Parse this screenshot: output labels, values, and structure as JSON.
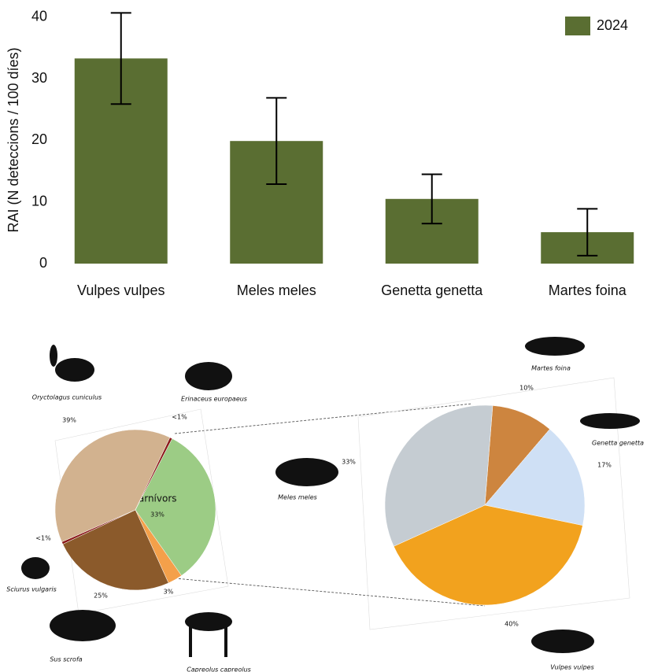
{
  "chart_data": [
    {
      "type": "bar",
      "y_label": "RAI (N deteccions / 100 díes)",
      "categories": [
        "Vulpes vulpes",
        "Meles meles",
        "Genetta genetta",
        "Martes foina"
      ],
      "series": [
        {
          "name": "2024",
          "color": "#5a6e32",
          "values": [
            33.3,
            19.9,
            10.5,
            5.1
          ],
          "errors": [
            7.4,
            7.0,
            4.0,
            3.8
          ]
        }
      ],
      "ylim": [
        0,
        41
      ],
      "yticks": [
        0,
        10,
        20,
        30,
        40
      ],
      "legend": "upper right"
    },
    {
      "type": "pie",
      "center_label": "Carnívors",
      "categories": [
        "Carnívors",
        "Capreolus capreolus",
        "Sus scrofa",
        "Sciurus vulgaris",
        "Oryctolagus cuniculus",
        "Erinaceus europaeus"
      ],
      "values": [
        33,
        3,
        25,
        0.5,
        39,
        0.5
      ],
      "value_labels": [
        "33%",
        "3%",
        "25%",
        "<1%",
        "39%",
        "<1%"
      ],
      "colors": [
        "#9ccc85",
        "#f4a04a",
        "#8b5a2b",
        "#8b1a1a",
        "#d2b28f",
        "#8b1a1a"
      ]
    },
    {
      "type": "pie",
      "categories": [
        "Martes foina",
        "Genetta genetta",
        "Vulpes vulpes",
        "Meles meles"
      ],
      "values": [
        10,
        17,
        40,
        33
      ],
      "value_labels": [
        "10%",
        "17%",
        "40%",
        "33%"
      ],
      "colors": [
        "#cd853f",
        "#cfe0f5",
        "#f2a21e",
        "#c5ccd2"
      ]
    }
  ]
}
